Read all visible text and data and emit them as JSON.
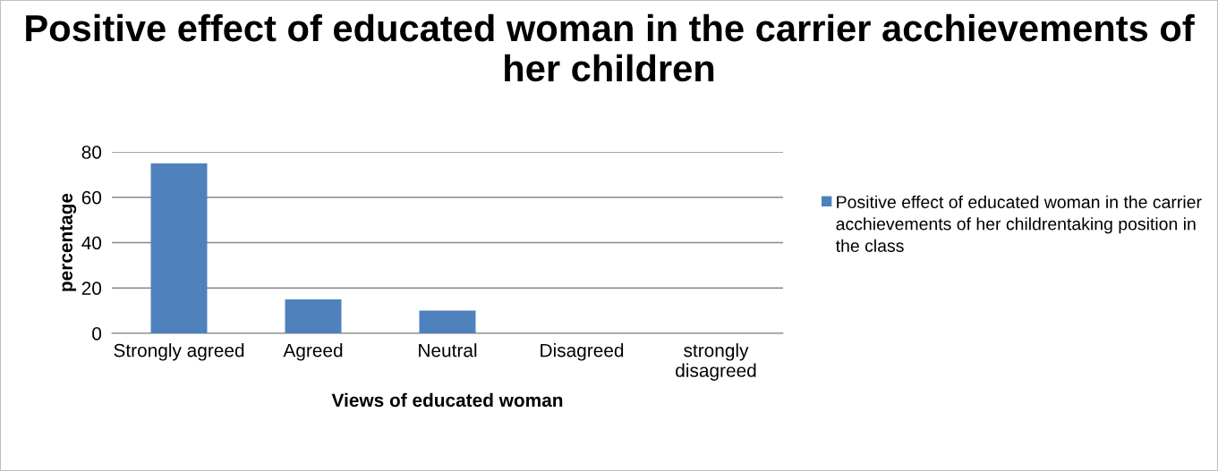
{
  "chart_data": {
    "type": "bar",
    "title": "Positive effect of educated woman in the carrier acchievements of her children",
    "xlabel": "Views of educated woman",
    "ylabel": "percentage",
    "categories": [
      "Strongly agreed",
      "Agreed",
      "Neutral",
      "Disagreed",
      "strongly\ndisagreed"
    ],
    "series": [
      {
        "name": "Positive effect of educated woman in the carrier acchievements of her childrentaking position in the class",
        "color": "#4f81bd",
        "values": [
          75,
          15,
          10,
          0,
          0
        ]
      }
    ],
    "ylim": [
      0,
      80
    ],
    "yticks": [
      0,
      20,
      40,
      60,
      80
    ],
    "grid": "y",
    "legend": "right"
  }
}
